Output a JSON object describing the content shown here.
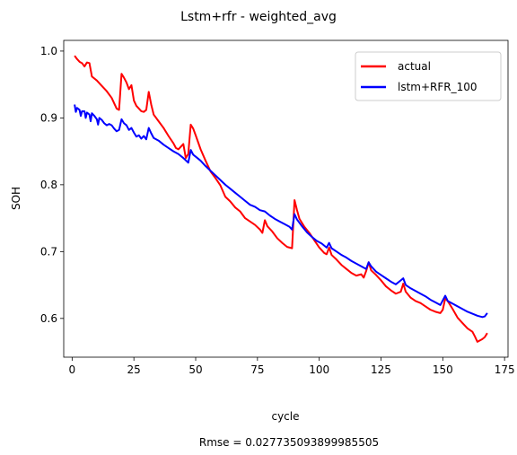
{
  "chart_data": {
    "type": "line",
    "title": "Lstm+rfr - weighted_avg",
    "xlabel": "cycle",
    "ylabel": "SOH",
    "xlim": [
      -3.4,
      176.4
    ],
    "ylim": [
      0.542,
      1.016
    ],
    "xticks": [
      0,
      25,
      50,
      75,
      100,
      125,
      150,
      175
    ],
    "yticks": [
      0.6,
      0.7,
      0.8,
      0.9,
      1.0
    ],
    "xtick_labels": [
      "0",
      "25",
      "50",
      "75",
      "100",
      "125",
      "150",
      "175"
    ],
    "ytick_labels": [
      "0.6",
      "0.7",
      "0.8",
      "0.9",
      "1.0"
    ],
    "grid": false,
    "legend_position": "top-right",
    "footer_text": "Rmse = 0.027735093899985505",
    "series": [
      {
        "name": "actual",
        "color": "#ff0000",
        "points": [
          [
            1,
            0.993
          ],
          [
            2,
            0.988
          ],
          [
            3,
            0.984
          ],
          [
            4,
            0.982
          ],
          [
            5,
            0.977
          ],
          [
            6,
            0.983
          ],
          [
            7,
            0.982
          ],
          [
            8,
            0.962
          ],
          [
            10,
            0.956
          ],
          [
            12,
            0.948
          ],
          [
            14,
            0.94
          ],
          [
            16,
            0.93
          ],
          [
            18,
            0.914
          ],
          [
            19,
            0.912
          ],
          [
            20,
            0.966
          ],
          [
            21,
            0.96
          ],
          [
            22,
            0.953
          ],
          [
            23,
            0.943
          ],
          [
            24,
            0.949
          ],
          [
            25,
            0.926
          ],
          [
            26,
            0.918
          ],
          [
            28,
            0.91
          ],
          [
            29,
            0.909
          ],
          [
            30,
            0.912
          ],
          [
            31,
            0.939
          ],
          [
            32,
            0.92
          ],
          [
            33,
            0.905
          ],
          [
            35,
            0.895
          ],
          [
            37,
            0.885
          ],
          [
            39,
            0.873
          ],
          [
            41,
            0.862
          ],
          [
            42,
            0.855
          ],
          [
            43,
            0.853
          ],
          [
            44,
            0.857
          ],
          [
            45,
            0.861
          ],
          [
            46,
            0.84
          ],
          [
            47,
            0.846
          ],
          [
            48,
            0.89
          ],
          [
            49,
            0.884
          ],
          [
            50,
            0.874
          ],
          [
            52,
            0.853
          ],
          [
            54,
            0.836
          ],
          [
            56,
            0.82
          ],
          [
            58,
            0.81
          ],
          [
            60,
            0.799
          ],
          [
            62,
            0.782
          ],
          [
            64,
            0.775
          ],
          [
            66,
            0.766
          ],
          [
            68,
            0.76
          ],
          [
            70,
            0.75
          ],
          [
            72,
            0.745
          ],
          [
            74,
            0.74
          ],
          [
            76,
            0.733
          ],
          [
            77,
            0.728
          ],
          [
            78,
            0.747
          ],
          [
            79,
            0.738
          ],
          [
            81,
            0.73
          ],
          [
            83,
            0.72
          ],
          [
            85,
            0.713
          ],
          [
            87,
            0.707
          ],
          [
            89,
            0.705
          ],
          [
            90,
            0.777
          ],
          [
            91,
            0.762
          ],
          [
            92,
            0.749
          ],
          [
            94,
            0.737
          ],
          [
            96,
            0.728
          ],
          [
            98,
            0.717
          ],
          [
            100,
            0.706
          ],
          [
            102,
            0.698
          ],
          [
            103,
            0.696
          ],
          [
            104,
            0.706
          ],
          [
            105,
            0.695
          ],
          [
            107,
            0.688
          ],
          [
            109,
            0.68
          ],
          [
            111,
            0.674
          ],
          [
            113,
            0.668
          ],
          [
            115,
            0.664
          ],
          [
            117,
            0.666
          ],
          [
            118,
            0.661
          ],
          [
            119,
            0.671
          ],
          [
            120,
            0.684
          ],
          [
            121,
            0.672
          ],
          [
            123,
            0.665
          ],
          [
            125,
            0.657
          ],
          [
            127,
            0.648
          ],
          [
            129,
            0.642
          ],
          [
            131,
            0.637
          ],
          [
            133,
            0.64
          ],
          [
            134,
            0.652
          ],
          [
            135,
            0.64
          ],
          [
            137,
            0.631
          ],
          [
            139,
            0.626
          ],
          [
            141,
            0.623
          ],
          [
            143,
            0.618
          ],
          [
            145,
            0.613
          ],
          [
            147,
            0.61
          ],
          [
            149,
            0.608
          ],
          [
            150,
            0.613
          ],
          [
            151,
            0.63
          ],
          [
            152,
            0.626
          ],
          [
            154,
            0.614
          ],
          [
            156,
            0.601
          ],
          [
            158,
            0.593
          ],
          [
            160,
            0.585
          ],
          [
            162,
            0.58
          ],
          [
            163,
            0.573
          ],
          [
            164,
            0.565
          ],
          [
            165,
            0.567
          ],
          [
            166,
            0.569
          ],
          [
            167,
            0.572
          ],
          [
            168,
            0.578
          ]
        ]
      },
      {
        "name": "lstm+RFR_100",
        "color": "#0000ff",
        "points": [
          [
            1,
            0.92
          ],
          [
            1.5,
            0.909
          ],
          [
            2,
            0.915
          ],
          [
            3,
            0.912
          ],
          [
            3.5,
            0.903
          ],
          [
            4,
            0.91
          ],
          [
            5,
            0.91
          ],
          [
            5.5,
            0.9
          ],
          [
            6,
            0.908
          ],
          [
            7,
            0.905
          ],
          [
            7.5,
            0.895
          ],
          [
            8,
            0.907
          ],
          [
            9,
            0.903
          ],
          [
            10,
            0.898
          ],
          [
            10.5,
            0.89
          ],
          [
            11,
            0.9
          ],
          [
            12,
            0.897
          ],
          [
            13,
            0.892
          ],
          [
            14,
            0.889
          ],
          [
            15,
            0.891
          ],
          [
            16,
            0.889
          ],
          [
            17,
            0.884
          ],
          [
            18,
            0.88
          ],
          [
            19,
            0.882
          ],
          [
            20,
            0.898
          ],
          [
            21,
            0.892
          ],
          [
            22,
            0.889
          ],
          [
            23,
            0.882
          ],
          [
            24,
            0.885
          ],
          [
            25,
            0.878
          ],
          [
            26,
            0.872
          ],
          [
            27,
            0.874
          ],
          [
            28,
            0.869
          ],
          [
            29,
            0.873
          ],
          [
            30,
            0.868
          ],
          [
            31,
            0.885
          ],
          [
            32,
            0.877
          ],
          [
            33,
            0.87
          ],
          [
            35,
            0.866
          ],
          [
            37,
            0.86
          ],
          [
            39,
            0.855
          ],
          [
            41,
            0.85
          ],
          [
            43,
            0.846
          ],
          [
            45,
            0.84
          ],
          [
            47,
            0.833
          ],
          [
            48,
            0.852
          ],
          [
            49,
            0.845
          ],
          [
            50,
            0.842
          ],
          [
            52,
            0.836
          ],
          [
            54,
            0.828
          ],
          [
            56,
            0.821
          ],
          [
            58,
            0.814
          ],
          [
            60,
            0.807
          ],
          [
            62,
            0.8
          ],
          [
            64,
            0.794
          ],
          [
            66,
            0.788
          ],
          [
            68,
            0.782
          ],
          [
            70,
            0.776
          ],
          [
            72,
            0.77
          ],
          [
            74,
            0.767
          ],
          [
            76,
            0.762
          ],
          [
            78,
            0.76
          ],
          [
            80,
            0.754
          ],
          [
            82,
            0.749
          ],
          [
            84,
            0.745
          ],
          [
            86,
            0.741
          ],
          [
            88,
            0.737
          ],
          [
            89,
            0.733
          ],
          [
            90,
            0.756
          ],
          [
            91,
            0.748
          ],
          [
            93,
            0.738
          ],
          [
            95,
            0.729
          ],
          [
            97,
            0.722
          ],
          [
            99,
            0.716
          ],
          [
            101,
            0.712
          ],
          [
            103,
            0.706
          ],
          [
            104,
            0.713
          ],
          [
            105,
            0.705
          ],
          [
            107,
            0.7
          ],
          [
            109,
            0.695
          ],
          [
            111,
            0.691
          ],
          [
            113,
            0.686
          ],
          [
            115,
            0.682
          ],
          [
            117,
            0.678
          ],
          [
            119,
            0.674
          ],
          [
            120,
            0.684
          ],
          [
            121,
            0.678
          ],
          [
            123,
            0.67
          ],
          [
            125,
            0.665
          ],
          [
            127,
            0.66
          ],
          [
            129,
            0.655
          ],
          [
            131,
            0.651
          ],
          [
            133,
            0.657
          ],
          [
            134,
            0.66
          ],
          [
            135,
            0.65
          ],
          [
            137,
            0.645
          ],
          [
            139,
            0.641
          ],
          [
            141,
            0.637
          ],
          [
            143,
            0.633
          ],
          [
            145,
            0.628
          ],
          [
            147,
            0.624
          ],
          [
            149,
            0.62
          ],
          [
            151,
            0.634
          ],
          [
            152,
            0.626
          ],
          [
            154,
            0.622
          ],
          [
            156,
            0.618
          ],
          [
            158,
            0.614
          ],
          [
            160,
            0.61
          ],
          [
            162,
            0.607
          ],
          [
            164,
            0.604
          ],
          [
            166,
            0.602
          ],
          [
            167,
            0.603
          ],
          [
            168,
            0.608
          ]
        ]
      }
    ]
  }
}
